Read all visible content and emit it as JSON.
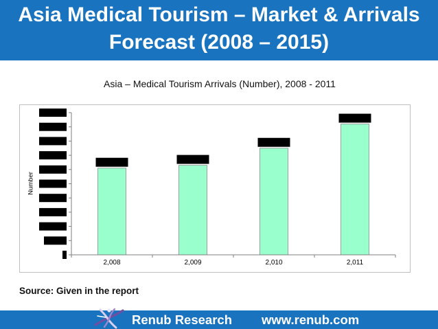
{
  "banner": {
    "title_line1": "Asia Medical Tourism – Market & Arrivals",
    "title_line2": "Forecast (2008 – 2015)"
  },
  "source_note": "Source: Given in the report",
  "footer": {
    "logo_icon": "renub-logo-icon",
    "brand": "Renub Research",
    "website": "www.renub.com"
  },
  "colors": {
    "brand_blue": "#1A73BE",
    "bar_fill": "#99FFCC",
    "bar_outline": "#8C8C8C",
    "axis": "#7F7F7F",
    "redaction": "#000000",
    "chart_border": "#BFBFBF"
  },
  "chart_data": {
    "type": "bar",
    "title": "Asia – Medical Tourism Arrivals (Number), 2008 - 2011",
    "xlabel": "",
    "ylabel": "Number",
    "categories": [
      "2,008",
      "2,009",
      "2,010",
      "2,011"
    ],
    "values": [
      6.1,
      6.3,
      7.5,
      9.2
    ],
    "ylim": [
      0,
      10
    ],
    "ytick_step": 1,
    "grid": false,
    "ytick_labels_redacted": true,
    "data_labels_redacted": true
  }
}
